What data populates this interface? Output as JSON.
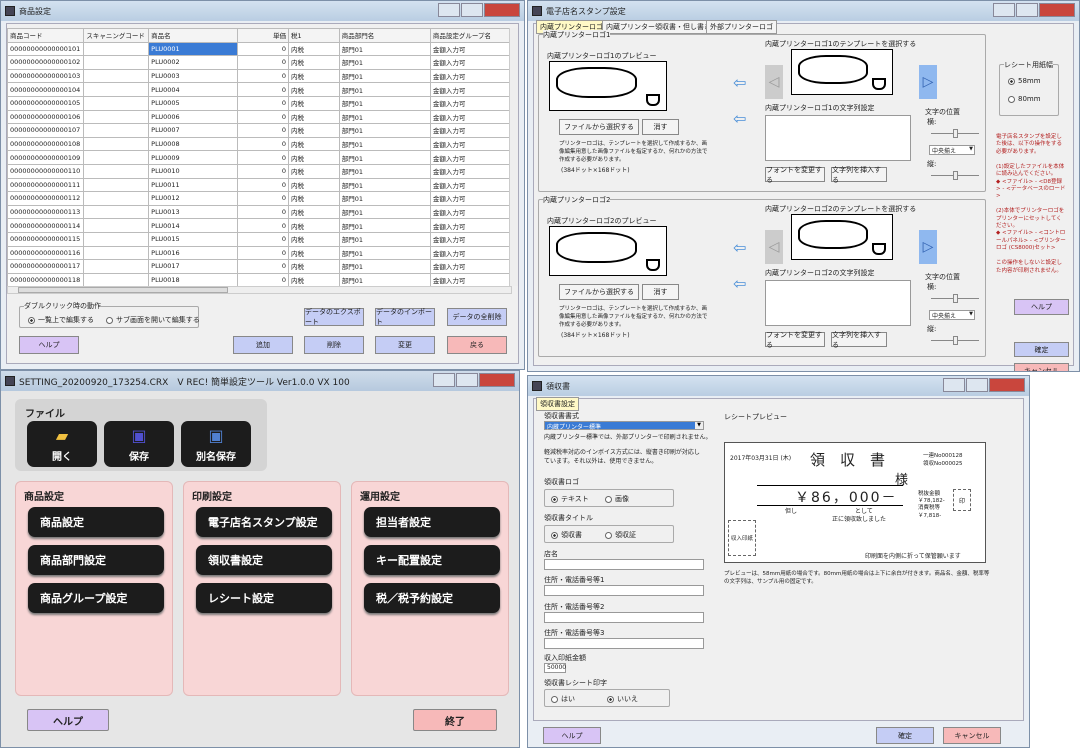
{
  "products_window": {
    "title": "商品設定",
    "columns": [
      "商品コード",
      "スキャニングコード",
      "商品名",
      "単価",
      "税1",
      "商品部門名",
      "商品設定グループ名"
    ],
    "rows": [
      [
        "00000000000000101",
        "",
        "PLU0001",
        "0",
        "内税",
        "部門01",
        "金額入力可"
      ],
      [
        "00000000000000102",
        "",
        "PLU0002",
        "0",
        "内税",
        "部門01",
        "金額入力可"
      ],
      [
        "00000000000000103",
        "",
        "PLU0003",
        "0",
        "内税",
        "部門01",
        "金額入力可"
      ],
      [
        "00000000000000104",
        "",
        "PLU0004",
        "0",
        "内税",
        "部門01",
        "金額入力可"
      ],
      [
        "00000000000000105",
        "",
        "PLU0005",
        "0",
        "内税",
        "部門01",
        "金額入力可"
      ],
      [
        "00000000000000106",
        "",
        "PLU0006",
        "0",
        "内税",
        "部門01",
        "金額入力可"
      ],
      [
        "00000000000000107",
        "",
        "PLU0007",
        "0",
        "内税",
        "部門01",
        "金額入力可"
      ],
      [
        "00000000000000108",
        "",
        "PLU0008",
        "0",
        "内税",
        "部門01",
        "金額入力可"
      ],
      [
        "00000000000000109",
        "",
        "PLU0009",
        "0",
        "内税",
        "部門01",
        "金額入力可"
      ],
      [
        "00000000000000110",
        "",
        "PLU0010",
        "0",
        "内税",
        "部門01",
        "金額入力可"
      ],
      [
        "00000000000000111",
        "",
        "PLU0011",
        "0",
        "内税",
        "部門01",
        "金額入力可"
      ],
      [
        "00000000000000112",
        "",
        "PLU0012",
        "0",
        "内税",
        "部門01",
        "金額入力可"
      ],
      [
        "00000000000000113",
        "",
        "PLU0013",
        "0",
        "内税",
        "部門01",
        "金額入力可"
      ],
      [
        "00000000000000114",
        "",
        "PLU0014",
        "0",
        "内税",
        "部門01",
        "金額入力可"
      ],
      [
        "00000000000000115",
        "",
        "PLU0015",
        "0",
        "内税",
        "部門01",
        "金額入力可"
      ],
      [
        "00000000000000116",
        "",
        "PLU0016",
        "0",
        "内税",
        "部門01",
        "金額入力可"
      ],
      [
        "00000000000000117",
        "",
        "PLU0017",
        "0",
        "内税",
        "部門01",
        "金額入力可"
      ],
      [
        "00000000000000118",
        "",
        "PLU0018",
        "0",
        "内税",
        "部門01",
        "金額入力可"
      ]
    ],
    "dblclick_group": "ダブルクリック時の動作",
    "radio_list": "一覧上で編集する",
    "radio_sub": "サブ画面を開いて編集する",
    "export": "データのエクスポート",
    "import": "データのインポート",
    "delete_all": "データの全削除",
    "help": "ヘルプ",
    "add": "追加",
    "delete": "削除",
    "change": "変更",
    "back": "戻る"
  },
  "stamp_window": {
    "title": "電子店名スタンプ設定",
    "tabs": [
      "内蔵プリンターロゴ",
      "内蔵プリンター領収書・但し書きロゴ",
      "外部プリンターロゴ"
    ],
    "sections": [
      {
        "group": "内蔵プリンターロゴ1",
        "preview": "内蔵プリンターロゴ1のプレビュー",
        "template": "内蔵プリンターロゴ1のテンプレートを選択する",
        "text": "内蔵プリンターロゴ1の文字列設定"
      },
      {
        "group": "内蔵プリンターロゴ2",
        "preview": "内蔵プリンターロゴ2のプレビュー",
        "template": "内蔵プリンターロゴ2のテンプレートを選択する",
        "text": "内蔵プリンターロゴ2の文字列設定"
      }
    ],
    "select_file": "ファイルから選択する",
    "erase": "消す",
    "note": "プリンターロゴは、テンプレートを選択して作成するか、画像編集用意した画像ファイルを指定するか、何れかの方法で作成する必要があります。",
    "size": "(384ドット×168ドット)",
    "font_change": "フォントを変更する",
    "insert_text": "文字列を挿入する",
    "pos_label": "文字の位置",
    "horizontal": "横:",
    "vertical": "縦:",
    "align": "中央揃え",
    "paper_group": "レシート用紙幅",
    "paper_58": "58mm",
    "paper_80": "80mm",
    "instructions": "電子店名スタンプを設定した後は、以下の操作をする必要があります。\n\n(1)設定したファイルを本体に読み込んでください。\n◆ <ファイル> - <D8登録> - <データベースのロード>\n\n(2)本体でプリンターロゴをプリンターにセットしてください。\n◆ <ファイル> - <コントロールパネル> - <プリンターロゴ (CS8000)セット>\n\nこの操作をしないと設定した内容が印刷されません。",
    "help": "ヘルプ",
    "ok": "確定",
    "cancel": "キャンセル"
  },
  "main_window": {
    "title": "SETTING_20200920_173254.CRX　V REC! 簡単設定ツール Ver1.0.0 VX 100",
    "file_label": "ファイル",
    "open": "開く",
    "save": "保存",
    "save_as": "別名保存",
    "panels": [
      {
        "title": "商品設定",
        "items": [
          "商品設定",
          "商品部門設定",
          "商品グループ設定"
        ]
      },
      {
        "title": "印刷設定",
        "items": [
          "電子店名スタンプ設定",
          "領収書設定",
          "レシート設定"
        ]
      },
      {
        "title": "運用設定",
        "items": [
          "担当者設定",
          "キー配置設定",
          "税／税予約設定"
        ]
      }
    ],
    "help": "ヘルプ",
    "exit": "終了"
  },
  "receipt_window": {
    "title": "領収書",
    "tab": "領収書設定",
    "format_label": "領収書書式",
    "format_value": "内蔵プリンター標準",
    "format_note": "内蔵プリンター標準では、外部プリンターで印刷されません。",
    "invoice_note": "軽減税率対応のインボイス方式には、縦書き印刷が対応しています。それ以外は、使用できません。",
    "logo_label": "領収書ロゴ",
    "logo_text": "テキスト",
    "logo_image": "画像",
    "title_label": "領収書タイトル",
    "title_receipt": "領収書",
    "title_ryoshu": "領収証",
    "store_label": "店名",
    "addr1": "住所・電話番号等1",
    "addr2": "住所・電話番号等2",
    "addr3": "住所・電話番号等3",
    "stamp_label": "収入印紙金額",
    "stamp_value": "50000",
    "reprint_label": "領収書レシート印字",
    "yes": "はい",
    "no": "いいえ",
    "preview_label": "レシートプレビュー",
    "preview": {
      "date": "2017年03月31日 (木)",
      "heading": "領　収　書",
      "serial1": "一連No000128",
      "serial2": "領収No000025",
      "sama": "様",
      "amount": "￥86，000－",
      "tadashi": "但し",
      "toshite": "として",
      "received": "正に領収致しました",
      "stamp": "収入印紙",
      "tax_label1": "税抜金額",
      "tax_val1": "￥78,182-",
      "tax_label2": "消費税等",
      "tax_val2": "￥7,818-",
      "seal": "印",
      "fold": "印刷面を内側に折って保管願います"
    },
    "preview_note": "プレビューは、58mm用紙の場合です。80mm用紙の場合は上下に余白が付きます。商品名、金額、税率等の文字列は、サンプル用の固定です。",
    "help": "ヘルプ",
    "ok": "確定",
    "cancel": "キャンセル"
  }
}
